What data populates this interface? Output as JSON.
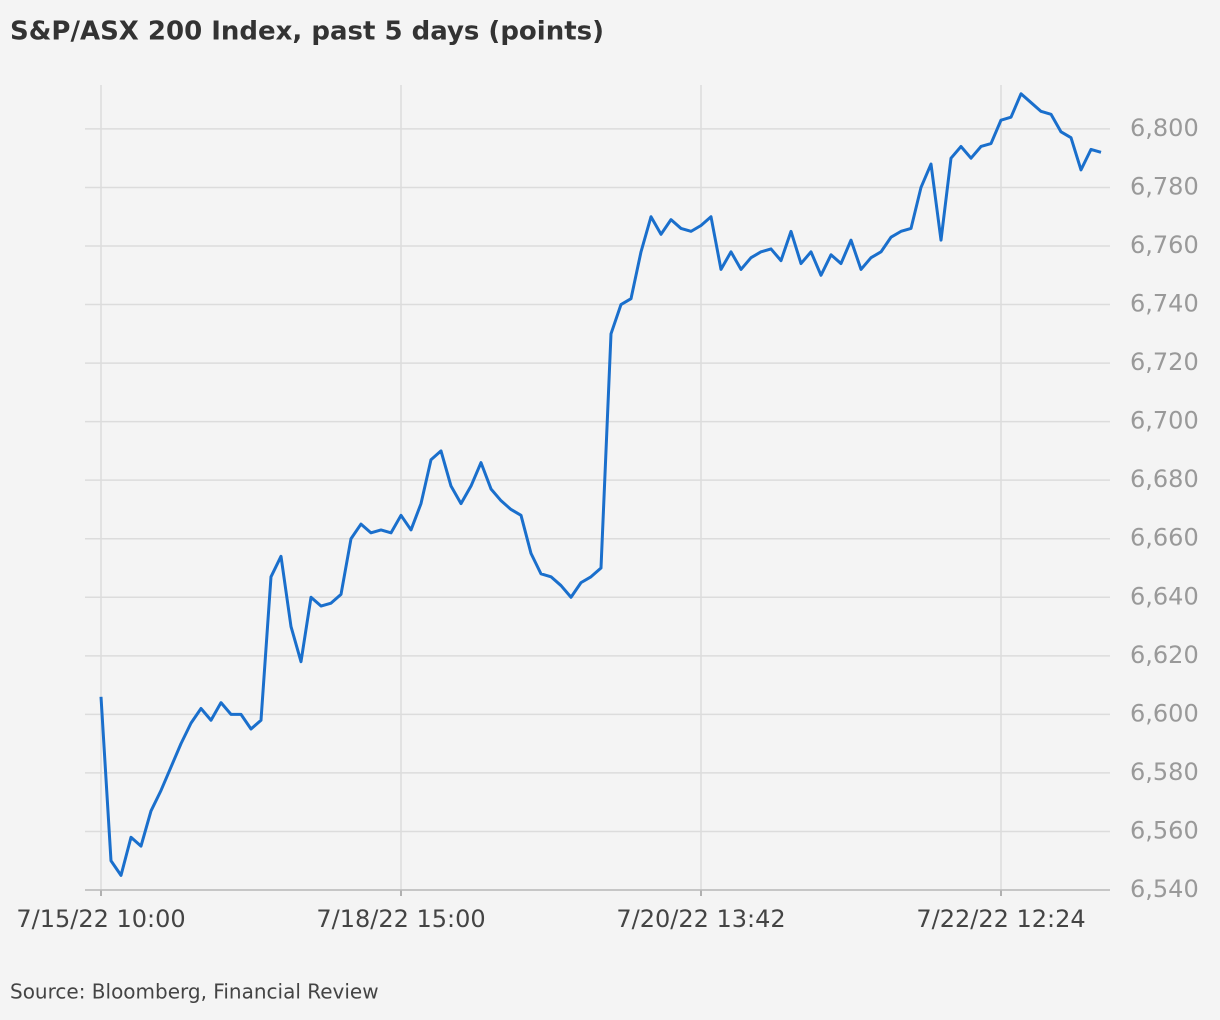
{
  "chart_data": {
    "type": "line",
    "title": "S&P/ASX 200 Index, past 5 days (points)",
    "source": "Source: Bloomberg, Financial Review",
    "categories": [
      "7/15/22 10:00",
      null,
      null,
      null,
      null,
      null,
      null,
      null,
      null,
      null,
      null,
      null,
      null,
      null,
      null,
      null,
      null,
      null,
      null,
      null,
      null,
      null,
      null,
      null,
      null,
      null,
      null,
      null,
      null,
      null,
      "7/18/22 15:00",
      null,
      null,
      null,
      null,
      null,
      null,
      null,
      null,
      null,
      null,
      null,
      null,
      null,
      null,
      null,
      null,
      null,
      null,
      null,
      null,
      null,
      null,
      null,
      null,
      null,
      null,
      null,
      null,
      null,
      "7/20/22 13:42",
      null,
      null,
      null,
      null,
      null,
      null,
      null,
      null,
      null,
      null,
      null,
      null,
      null,
      null,
      null,
      null,
      null,
      null,
      null,
      null,
      null,
      null,
      null,
      null,
      null,
      null,
      null,
      null,
      null,
      "7/22/22 12:24",
      null,
      null,
      null,
      null,
      null,
      null,
      null,
      null,
      null,
      null
    ],
    "values": [
      6606,
      6550,
      6545,
      6558,
      6555,
      6567,
      6574,
      6582,
      6590,
      6597,
      6602,
      6598,
      6604,
      6600,
      6600,
      6595,
      6598,
      6647,
      6654,
      6630,
      6618,
      6640,
      6637,
      6638,
      6641,
      6660,
      6665,
      6662,
      6663,
      6662,
      6668,
      6663,
      6672,
      6687,
      6690,
      6678,
      6672,
      6678,
      6686,
      6677,
      6673,
      6670,
      6668,
      6655,
      6648,
      6647,
      6644,
      6640,
      6645,
      6647,
      6650,
      6730,
      6740,
      6742,
      6758,
      6770,
      6764,
      6769,
      6766,
      6765,
      6767,
      6770,
      6752,
      6758,
      6752,
      6756,
      6758,
      6759,
      6755,
      6765,
      6754,
      6758,
      6750,
      6757,
      6754,
      6762,
      6752,
      6756,
      6758,
      6763,
      6765,
      6766,
      6780,
      6788,
      6762,
      6790,
      6794,
      6790,
      6794,
      6795,
      6803,
      6804,
      6812,
      6809,
      6806,
      6805,
      6799,
      6797,
      6786,
      6793,
      6792
    ],
    "color": "#1a6fcc",
    "ylim": [
      6540,
      6815
    ],
    "yticks": [
      {
        "value": 6540,
        "label": "6,540"
      },
      {
        "value": 6560,
        "label": "6,560"
      },
      {
        "value": 6580,
        "label": "6,580"
      },
      {
        "value": 6600,
        "label": "6,600"
      },
      {
        "value": 6620,
        "label": "6,620"
      },
      {
        "value": 6640,
        "label": "6,640"
      },
      {
        "value": 6660,
        "label": "6,660"
      },
      {
        "value": 6680,
        "label": "6,680"
      },
      {
        "value": 6700,
        "label": "6,700"
      },
      {
        "value": 6720,
        "label": "6,720"
      },
      {
        "value": 6740,
        "label": "6,740"
      },
      {
        "value": 6760,
        "label": "6,760"
      },
      {
        "value": 6780,
        "label": "6,780"
      },
      {
        "value": 6800,
        "label": "6,800"
      }
    ],
    "grid": true
  }
}
